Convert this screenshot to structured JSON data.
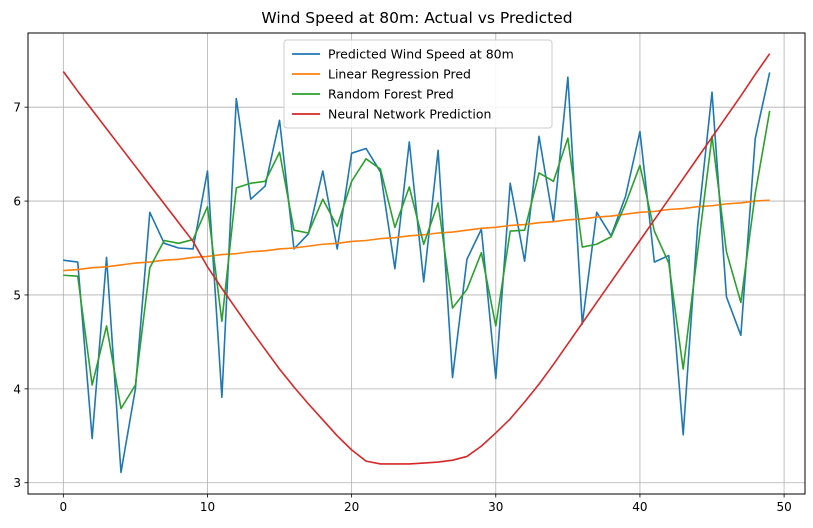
{
  "chart_data": {
    "type": "line",
    "title": "Wind Speed at 80m: Actual vs Predicted",
    "xlabel": "",
    "ylabel": "",
    "xlim": [
      -2.45,
      51.45
    ],
    "ylim": [
      2.88,
      7.79
    ],
    "xticks": [
      0,
      10,
      20,
      30,
      40,
      50
    ],
    "yticks": [
      3,
      4,
      5,
      6,
      7
    ],
    "grid": true,
    "legend_position": "top-center",
    "x": [
      0,
      1,
      2,
      3,
      4,
      5,
      6,
      7,
      8,
      9,
      10,
      11,
      12,
      13,
      14,
      15,
      16,
      17,
      18,
      19,
      20,
      21,
      22,
      23,
      24,
      25,
      26,
      27,
      28,
      29,
      30,
      31,
      32,
      33,
      34,
      35,
      36,
      37,
      38,
      39,
      40,
      41,
      42,
      43,
      44,
      45,
      46,
      47,
      48,
      49
    ],
    "series": [
      {
        "name": "Predicted Wind Speed at 80m",
        "color": "#1f77b4",
        "values": [
          5.37,
          5.35,
          3.47,
          5.4,
          3.11,
          4.0,
          5.88,
          5.55,
          5.5,
          5.49,
          6.32,
          3.91,
          7.09,
          6.02,
          6.16,
          6.86,
          5.49,
          5.65,
          6.32,
          5.49,
          6.51,
          6.56,
          6.31,
          5.28,
          6.63,
          5.14,
          6.54,
          4.12,
          5.38,
          5.7,
          4.11,
          6.19,
          5.36,
          6.69,
          5.78,
          7.32,
          4.69,
          5.88,
          5.63,
          6.05,
          6.74,
          5.35,
          5.42,
          3.51,
          5.73,
          7.16,
          4.98,
          4.57,
          6.67,
          7.37
        ]
      },
      {
        "name": "Linear Regression Pred",
        "color": "#ff7f0e",
        "values": [
          5.26,
          5.27,
          5.29,
          5.3,
          5.32,
          5.34,
          5.35,
          5.37,
          5.38,
          5.4,
          5.41,
          5.43,
          5.44,
          5.46,
          5.47,
          5.49,
          5.5,
          5.52,
          5.54,
          5.55,
          5.57,
          5.58,
          5.6,
          5.61,
          5.63,
          5.64,
          5.66,
          5.67,
          5.69,
          5.71,
          5.72,
          5.74,
          5.75,
          5.77,
          5.78,
          5.8,
          5.81,
          5.83,
          5.84,
          5.86,
          5.88,
          5.89,
          5.91,
          5.92,
          5.94,
          5.95,
          5.97,
          5.98,
          6.0,
          6.01
        ]
      },
      {
        "name": "Random Forest Pred",
        "color": "#2ca02c",
        "values": [
          5.21,
          5.2,
          4.04,
          4.67,
          3.79,
          4.04,
          5.29,
          5.58,
          5.55,
          5.59,
          5.94,
          4.72,
          6.14,
          6.19,
          6.21,
          6.52,
          5.69,
          5.66,
          6.02,
          5.73,
          6.21,
          6.45,
          6.34,
          5.72,
          6.15,
          5.54,
          5.98,
          4.86,
          5.06,
          5.45,
          4.67,
          5.68,
          5.69,
          6.3,
          6.21,
          6.67,
          5.51,
          5.54,
          5.62,
          5.97,
          6.38,
          5.68,
          5.34,
          4.21,
          5.46,
          6.69,
          5.46,
          4.92,
          6.08,
          6.96
        ]
      },
      {
        "name": "Neural Network Prediction",
        "color": "#d62728",
        "values": [
          7.38,
          7.17,
          6.97,
          6.77,
          6.57,
          6.37,
          6.17,
          5.97,
          5.77,
          5.57,
          5.3,
          5.07,
          4.85,
          4.63,
          4.42,
          4.21,
          4.02,
          3.84,
          3.67,
          3.5,
          3.35,
          3.23,
          3.2,
          3.2,
          3.2,
          3.21,
          3.22,
          3.24,
          3.28,
          3.39,
          3.53,
          3.68,
          3.86,
          4.05,
          4.26,
          4.48,
          4.7,
          4.92,
          5.14,
          5.36,
          5.58,
          5.8,
          6.02,
          6.24,
          6.46,
          6.68,
          6.9,
          7.12,
          7.35,
          7.57
        ]
      }
    ]
  }
}
